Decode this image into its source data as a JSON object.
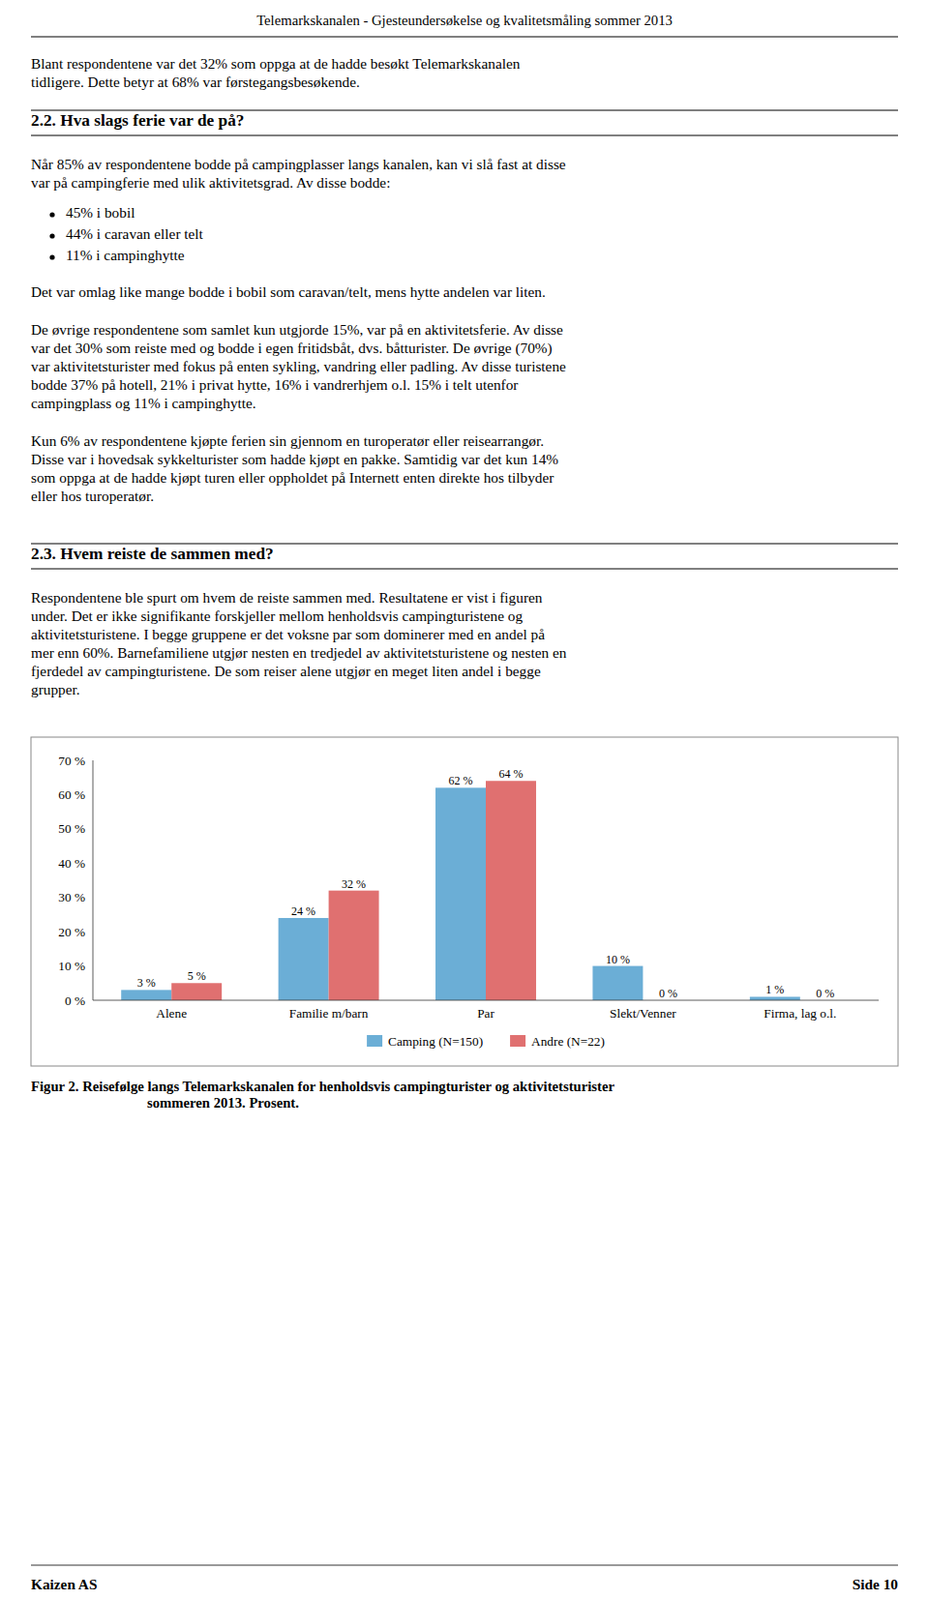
{
  "page_bg": "#ffffff",
  "header_title": "Telemarkskanalen - Gjesteundersøkelse og kvalitetsmåling sommer 2013",
  "para1_lines": [
    "Blant respondentene var det 32% som oppga at de hadde besøkt Telemarkskanalen",
    "tidligere.  Dette betyr at 68% var førstegangsbesøkende."
  ],
  "section_title_1": "2.2.    Hva slags ferie var de på?",
  "para2_lines": [
    "Når 85% av respondentene bodde på campingplasser langs kanalen, kan vi slå fast at disse",
    "var på campingferie med ulik aktivitetsgrad.  Av disse bodde:"
  ],
  "bullets": [
    "45% i bobil",
    "44% i caravan eller telt",
    "11% i campinghytte"
  ],
  "para3_lines": [
    "Det var omlag like mange bodde i bobil som caravan/telt, mens hytte andelen var liten."
  ],
  "para4_lines": [
    "De øvrige respondentene  som samlet kun utgjorde 15%, var på en aktivitetsferie.  Av disse",
    "var det 30% som reiste med og bodde i egen fritidsbåt, dvs. båtturister.  De øvrige (70%)",
    "var aktivitetsturister med fokus på enten sykling, vandring eller padling.  Av disse turistene",
    "bodde 37% på hotell, 21% i privat hytte, 16% i vandrerhjem o.l. 15% i telt utenfor",
    "campingplass og 11% i campinghytte."
  ],
  "para5_lines": [
    "Kun 6% av respondentene kjøpte ferien sin gjennom en turoperatør eller reisearrangør.",
    "Disse var i hovedsak sykkelturister som hadde kjøpt en pakke.  Samtidig var det kun 14%",
    "som oppga at de hadde kjøpt turen eller oppholdet på Internett enten direkte hos tilbyder",
    "eller hos turoperatør."
  ],
  "section_title_2": "2.3.    Hvem reiste de sammen med?",
  "para6_lines": [
    "Respondentene ble spurt om hvem de reiste sammen med.  Resultatene er vist i figuren",
    "under.  Det er ikke signifikante forskjeller mellom henholdsvis campingturistene og",
    "aktivitetsturistene.  I begge gruppene er det voksne par som dominerer med en andel på",
    "mer enn 60%.  Barnefamiliene utgjør nesten en tredjedel av aktivitetsturistene og nesten en",
    "fjerdedel av campingturistene.  De som reiser alene utgjør en meget liten andel i begge",
    "grupper."
  ],
  "chart_data": {
    "type": "bar",
    "categories": [
      "Alene",
      "Familie m/barn",
      "Par",
      "Slekt/Venner",
      "Firma, lag o.l."
    ],
    "series": [
      {
        "name": "Camping (N=150)",
        "color": "#6baed6",
        "values": [
          3,
          24,
          62,
          10,
          1
        ],
        "value_labels": [
          "3 %",
          "24 %",
          "62 %",
          "10 %",
          "1 %"
        ]
      },
      {
        "name": "Andre (N=22)",
        "color": "#e07070",
        "values": [
          5,
          32,
          64,
          0,
          0
        ],
        "value_labels": [
          "5 %",
          "32 %",
          "64 %",
          "0 %",
          "0 %"
        ]
      }
    ],
    "ylim": [
      0,
      70
    ],
    "yticks": [
      {
        "value": 0,
        "label": "0 %"
      },
      {
        "value": 10,
        "label": "10 %"
      },
      {
        "value": 20,
        "label": "20 %"
      },
      {
        "value": 30,
        "label": "30 %"
      },
      {
        "value": 40,
        "label": "40 %"
      },
      {
        "value": 50,
        "label": "50 %"
      },
      {
        "value": 60,
        "label": "60 %"
      },
      {
        "value": 70,
        "label": "70 %"
      }
    ],
    "grid": false,
    "legend": "bottom",
    "data_labels": true
  },
  "fig_caption_lines": [
    "Figur 2. Reisefølge langs Telemarkskanalen for henholdsvis campingturister og aktivitetsturister",
    "sommeren 2013.  Prosent."
  ],
  "footer_left": "Kaizen AS",
  "footer_right": "Side  10"
}
